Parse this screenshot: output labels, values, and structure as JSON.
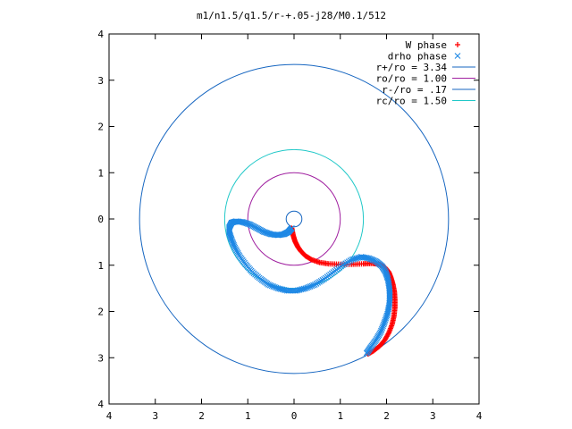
{
  "chart_data": {
    "type": "scatter",
    "title": "m1/n1.5/q1.5/r-+.05-j28/M0.1/512",
    "xlabel": "",
    "ylabel": "",
    "xlim": [
      -4,
      4
    ],
    "ylim": [
      -4,
      4
    ],
    "x_tick_labels": [
      "4",
      "3",
      "2",
      "1",
      "0",
      "1",
      "2",
      "3",
      "4"
    ],
    "y_tick_labels": [
      "4",
      "3",
      "2",
      "1",
      "0",
      "1",
      "2",
      "3",
      "4"
    ],
    "legend_position": "top-right",
    "grid": false,
    "series": [
      {
        "name": "W phase",
        "type": "scatter",
        "marker": "plus",
        "color": "#ff0000",
        "points": [
          [
            -0.05,
            -0.2
          ],
          [
            -0.02,
            -0.35
          ],
          [
            0.02,
            -0.48
          ],
          [
            0.08,
            -0.6
          ],
          [
            0.15,
            -0.7
          ],
          [
            0.25,
            -0.8
          ],
          [
            0.38,
            -0.88
          ],
          [
            0.55,
            -0.94
          ],
          [
            0.75,
            -0.97
          ],
          [
            1.0,
            -0.98
          ],
          [
            1.25,
            -0.98
          ],
          [
            1.5,
            -0.97
          ],
          [
            1.7,
            -0.96
          ],
          [
            1.85,
            -0.98
          ],
          [
            1.97,
            -1.05
          ],
          [
            2.05,
            -1.15
          ],
          [
            2.1,
            -1.28
          ],
          [
            2.14,
            -1.42
          ],
          [
            2.17,
            -1.58
          ],
          [
            2.18,
            -1.75
          ],
          [
            2.18,
            -1.92
          ],
          [
            2.16,
            -2.1
          ],
          [
            2.12,
            -2.28
          ],
          [
            2.05,
            -2.46
          ],
          [
            1.96,
            -2.62
          ],
          [
            1.85,
            -2.75
          ],
          [
            1.72,
            -2.85
          ],
          [
            1.6,
            -2.92
          ]
        ]
      },
      {
        "name": "drho phase",
        "type": "scatter",
        "marker": "cross",
        "color": "#1e88e5",
        "points": [
          [
            -0.05,
            -0.2
          ],
          [
            -0.12,
            -0.28
          ],
          [
            -0.22,
            -0.33
          ],
          [
            -0.35,
            -0.35
          ],
          [
            -0.5,
            -0.33
          ],
          [
            -0.65,
            -0.28
          ],
          [
            -0.8,
            -0.2
          ],
          [
            -0.95,
            -0.12
          ],
          [
            -1.1,
            -0.07
          ],
          [
            -1.25,
            -0.05
          ],
          [
            -1.35,
            -0.08
          ],
          [
            -1.4,
            -0.18
          ],
          [
            -1.4,
            -0.3
          ],
          [
            -1.35,
            -0.45
          ],
          [
            -1.28,
            -0.62
          ],
          [
            -1.18,
            -0.8
          ],
          [
            -1.05,
            -0.98
          ],
          [
            -0.9,
            -1.15
          ],
          [
            -0.72,
            -1.3
          ],
          [
            -0.55,
            -1.42
          ],
          [
            -0.35,
            -1.5
          ],
          [
            -0.15,
            -1.55
          ],
          [
            0.05,
            -1.55
          ],
          [
            0.25,
            -1.5
          ],
          [
            0.45,
            -1.42
          ],
          [
            0.65,
            -1.3
          ],
          [
            0.85,
            -1.15
          ],
          [
            1.05,
            -1.0
          ],
          [
            1.25,
            -0.88
          ],
          [
            1.45,
            -0.82
          ],
          [
            1.62,
            -0.85
          ],
          [
            1.78,
            -0.92
          ],
          [
            1.9,
            -1.02
          ],
          [
            1.98,
            -1.15
          ],
          [
            2.03,
            -1.3
          ],
          [
            2.06,
            -1.48
          ],
          [
            2.07,
            -1.66
          ],
          [
            2.06,
            -1.85
          ],
          [
            2.02,
            -2.05
          ],
          [
            1.95,
            -2.25
          ],
          [
            1.87,
            -2.45
          ],
          [
            1.77,
            -2.62
          ],
          [
            1.66,
            -2.77
          ],
          [
            1.57,
            -2.9
          ]
        ]
      },
      {
        "name": "r+/ro = 3.34",
        "type": "circle",
        "radius": 3.34,
        "color": "#1565c0"
      },
      {
        "name": "ro/ro = 1.00",
        "type": "circle",
        "radius": 1.0,
        "color": "#a020a0"
      },
      {
        "name": "r-/ro = .17",
        "type": "circle",
        "radius": 0.17,
        "color": "#1565c0"
      },
      {
        "name": "rc/ro = 1.50",
        "type": "circle",
        "radius": 1.5,
        "color": "#20c8c8"
      }
    ]
  }
}
